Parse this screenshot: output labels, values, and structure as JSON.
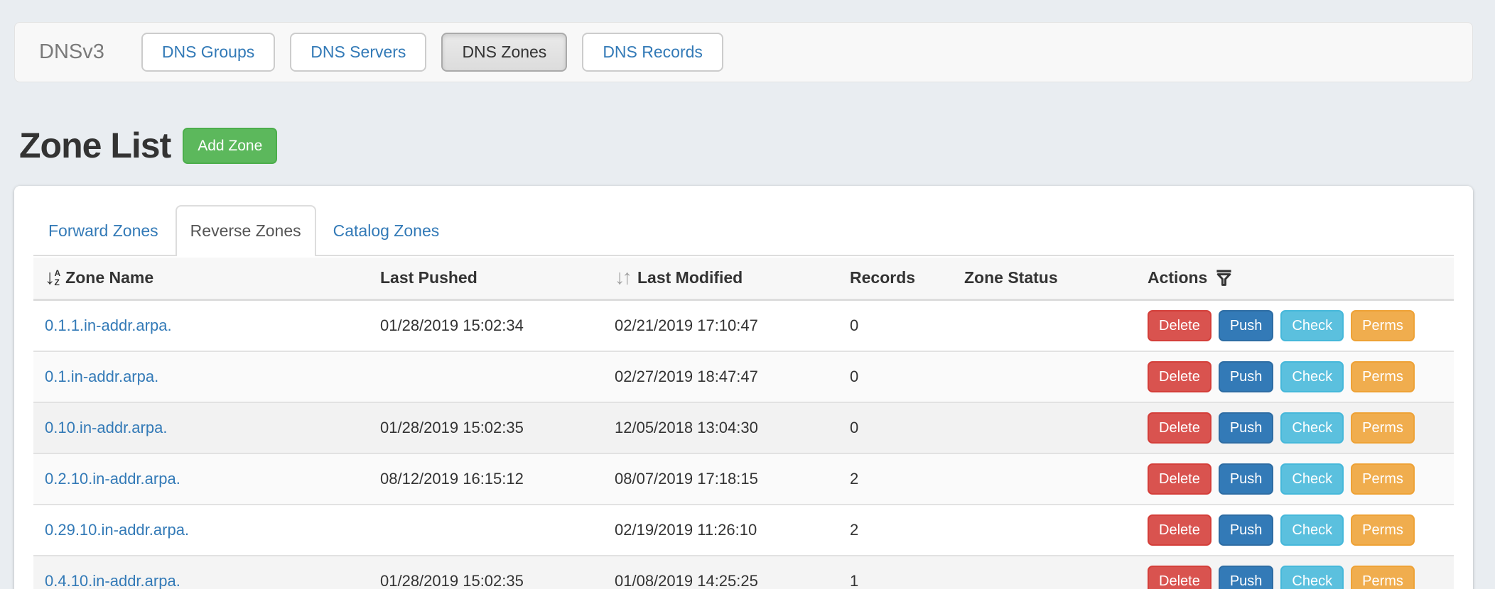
{
  "navbar": {
    "brand": "DNSv3",
    "items": [
      {
        "label": "DNS Groups",
        "active": false
      },
      {
        "label": "DNS Servers",
        "active": false
      },
      {
        "label": "DNS Zones",
        "active": true
      },
      {
        "label": "DNS Records",
        "active": false
      }
    ]
  },
  "page": {
    "title": "Zone List",
    "add_button_label": "Add Zone"
  },
  "tabs": [
    {
      "label": "Forward Zones",
      "active": false
    },
    {
      "label": "Reverse Zones",
      "active": true
    },
    {
      "label": "Catalog Zones",
      "active": false
    }
  ],
  "table": {
    "columns": [
      {
        "label": "Zone Name",
        "sort_icon": "sort-alpha-asc"
      },
      {
        "label": "Last Pushed",
        "sort_icon": null
      },
      {
        "label": "Last Modified",
        "sort_icon": "sort-both"
      },
      {
        "label": "Records",
        "sort_icon": null
      },
      {
        "label": "Zone Status",
        "sort_icon": null
      },
      {
        "label": "Actions",
        "sort_icon": "filter"
      }
    ],
    "action_buttons": [
      {
        "label": "Delete",
        "bg": "#d9534f",
        "border": "#d43f3a"
      },
      {
        "label": "Push",
        "bg": "#337ab7",
        "border": "#2e6da4"
      },
      {
        "label": "Check",
        "bg": "#5bc0de",
        "border": "#46b8da"
      },
      {
        "label": "Perms",
        "bg": "#f0ad4e",
        "border": "#eea236"
      }
    ],
    "rows": [
      {
        "zone_name": "0.1.1.in-addr.arpa.",
        "last_pushed": "01/28/2019 15:02:34",
        "last_modified": "02/21/2019 17:10:47",
        "records": "0",
        "zone_status": ""
      },
      {
        "zone_name": "0.1.in-addr.arpa.",
        "last_pushed": "",
        "last_modified": "02/27/2019 18:47:47",
        "records": "0",
        "zone_status": ""
      },
      {
        "zone_name": "0.10.in-addr.arpa.",
        "last_pushed": "01/28/2019 15:02:35",
        "last_modified": "12/05/2018 13:04:30",
        "records": "0",
        "zone_status": ""
      },
      {
        "zone_name": "0.2.10.in-addr.arpa.",
        "last_pushed": "08/12/2019 16:15:12",
        "last_modified": "08/07/2019 17:18:15",
        "records": "2",
        "zone_status": ""
      },
      {
        "zone_name": "0.29.10.in-addr.arpa.",
        "last_pushed": "",
        "last_modified": "02/19/2019 11:26:10",
        "records": "2",
        "zone_status": ""
      },
      {
        "zone_name": "0.4.10.in-addr.arpa.",
        "last_pushed": "01/28/2019 15:02:35",
        "last_modified": "01/08/2019 14:25:25",
        "records": "1",
        "zone_status": ""
      }
    ]
  },
  "colors": {
    "link": "#337ab7",
    "add_button": "#5cb85c",
    "add_button_border": "#4cae4c",
    "page_background": "#e9edf1",
    "navbar_background": "#f8f8f8"
  }
}
